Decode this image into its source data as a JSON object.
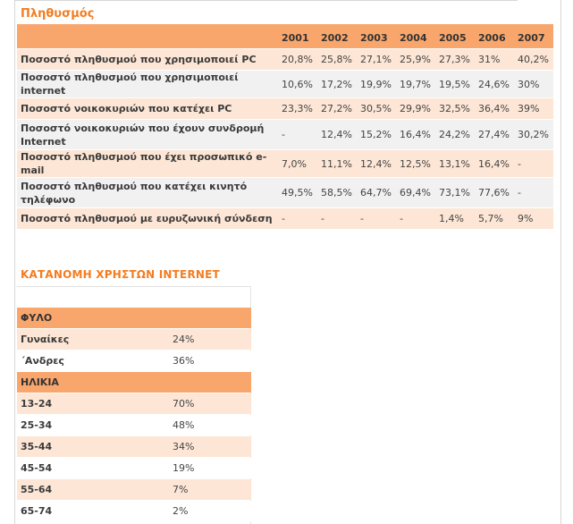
{
  "population": {
    "title": "Πληθυσμός",
    "years": [
      "2001",
      "2002",
      "2003",
      "2004",
      "2005",
      "2006",
      "2007"
    ],
    "rows": [
      {
        "label": "Ποσοστό πληθυσμού που χρησιμοποιεί PC",
        "values": [
          "20,8%",
          "25,8%",
          "27,1%",
          "25,9%",
          "27,3%",
          "31%",
          "40,2%"
        ]
      },
      {
        "label": "Ποσοστό πληθυσμού που χρησιμοποιεί internet",
        "values": [
          "10,6%",
          "17,2%",
          "19,9%",
          "19,7%",
          "19,5%",
          "24,6%",
          "30%"
        ]
      },
      {
        "label": "Ποσοστό νοικοκυριών που κατέχει PC",
        "values": [
          "23,3%",
          "27,2%",
          "30,5%",
          "29,9%",
          "32,5%",
          "36,4%",
          "39%"
        ]
      },
      {
        "label": "Ποσοστό νοικοκυριών που έχουν συνδρομή Internet",
        "values": [
          "-",
          "12,4%",
          "15,2%",
          "16,4%",
          "24,2%",
          "27,4%",
          "30,2%"
        ]
      },
      {
        "label": "Ποσοστό πληθυσμού που έχει προσωπικό e-mail",
        "values": [
          "7,0%",
          "11,1%",
          "12,4%",
          "12,5%",
          "13,1%",
          "16,4%",
          "-"
        ]
      },
      {
        "label": "Ποσοστό πληθυσμού που κατέχει κινητό τηλέφωνο",
        "values": [
          "49,5%",
          "58,5%",
          "64,7%",
          "69,4%",
          "73,1%",
          "77,6%",
          "-"
        ]
      },
      {
        "label": "Ποσοστό πληθυσμού με ευρυζωνική σύνδεση",
        "values": [
          "-",
          "-",
          "-",
          "-",
          "1,4%",
          "5,7%",
          "9%"
        ]
      }
    ]
  },
  "distribution": {
    "title": "ΚΑΤΑΝΟΜΗ ΧΡΗΣΤΩΝ INTERNET",
    "gender_header": "ΦΥΛΟ",
    "gender": [
      {
        "label": "Γυναίκες",
        "value": "24%"
      },
      {
        "label": "΄Ανδρες",
        "value": "36%"
      }
    ],
    "age_header": "ΗΛΙΚΙΑ",
    "age": [
      {
        "label": "13-24",
        "value": "70%"
      },
      {
        "label": "25-34",
        "value": "48%"
      },
      {
        "label": "35-44",
        "value": "34%"
      },
      {
        "label": "45-54",
        "value": "19%"
      },
      {
        "label": "55-64",
        "value": "7%"
      },
      {
        "label": "65-74",
        "value": "2%"
      }
    ]
  }
}
